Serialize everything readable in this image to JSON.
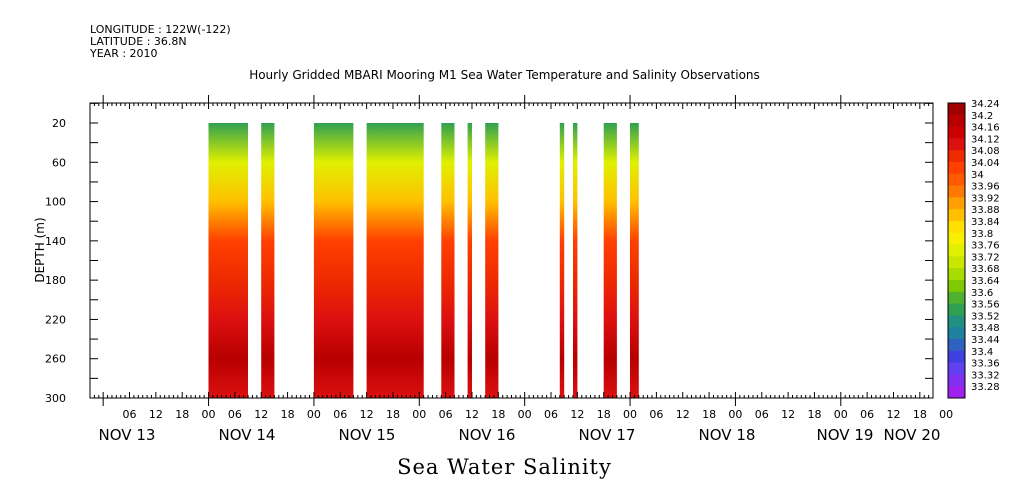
{
  "header": {
    "longitude": "LONGITUDE : 122W(-122)",
    "latitude": "LATITUDE : 36.8N",
    "year": "YEAR : 2010"
  },
  "chart_data": {
    "type": "heatmap",
    "title": "Hourly Gridded MBARI Mooring M1 Sea Water Temperature and Salinity Observations",
    "xlabel": "Sea Water Salinity",
    "ylabel": "DEPTH (m)",
    "x_range_hours_from_nov13_00": [
      -3,
      189
    ],
    "ylim": [
      300,
      0
    ],
    "y_ticks": [
      20,
      60,
      100,
      140,
      180,
      220,
      260,
      300
    ],
    "hour_tick_labels": [
      "06",
      "12",
      "18",
      "00",
      "06",
      "12",
      "18",
      "00",
      "06",
      "12",
      "18",
      "00",
      "06",
      "12",
      "18",
      "00",
      "06",
      "12",
      "18",
      "00",
      "06",
      "12",
      "18",
      "00",
      "06",
      "12",
      "18",
      "00",
      "06",
      "12",
      "18",
      "00"
    ],
    "date_labels": [
      "NOV 13",
      "NOV 14",
      "NOV 15",
      "NOV 16",
      "NOV 17",
      "NOV 18",
      "NOV 19",
      "NOV 20"
    ],
    "colorbar_labels": [
      "34.24",
      "34.2",
      "34.16",
      "34.12",
      "34.08",
      "34.04",
      "34",
      "33.96",
      "33.92",
      "33.88",
      "33.84",
      "33.8",
      "33.76",
      "33.72",
      "33.68",
      "33.64",
      "33.6",
      "33.56",
      "33.52",
      "33.48",
      "33.44",
      "33.4",
      "33.36",
      "33.32",
      "33.28"
    ],
    "colorbar_colors": [
      "#a00000",
      "#b80000",
      "#cc0000",
      "#dd1010",
      "#ee2a00",
      "#ff4000",
      "#ff5a00",
      "#ff7800",
      "#ffa000",
      "#ffc000",
      "#ffe000",
      "#f8f000",
      "#e0f000",
      "#c8e600",
      "#a8dc00",
      "#80c800",
      "#50b030",
      "#30a050",
      "#209080",
      "#2080a0",
      "#3060c0",
      "#4040e0",
      "#6040f0",
      "#8030f0",
      "#a020f0"
    ],
    "data_segments_hours": [
      [
        24,
        33
      ],
      [
        36,
        39
      ],
      [
        48,
        57
      ],
      [
        60,
        73
      ],
      [
        77,
        80
      ],
      [
        83,
        84
      ],
      [
        87,
        90
      ],
      [
        104,
        105
      ],
      [
        107,
        108
      ],
      [
        114,
        117
      ],
      [
        120,
        122
      ]
    ],
    "approx_salinity_profile": [
      {
        "depth": 20,
        "salinity": 33.56
      },
      {
        "depth": 60,
        "salinity": 33.74
      },
      {
        "depth": 100,
        "salinity": 33.88
      },
      {
        "depth": 140,
        "salinity": 34.02
      },
      {
        "depth": 180,
        "salinity": 34.06
      },
      {
        "depth": 220,
        "salinity": 34.1
      },
      {
        "depth": 260,
        "salinity": 34.18
      },
      {
        "depth": 300,
        "salinity": 34.12
      }
    ]
  }
}
